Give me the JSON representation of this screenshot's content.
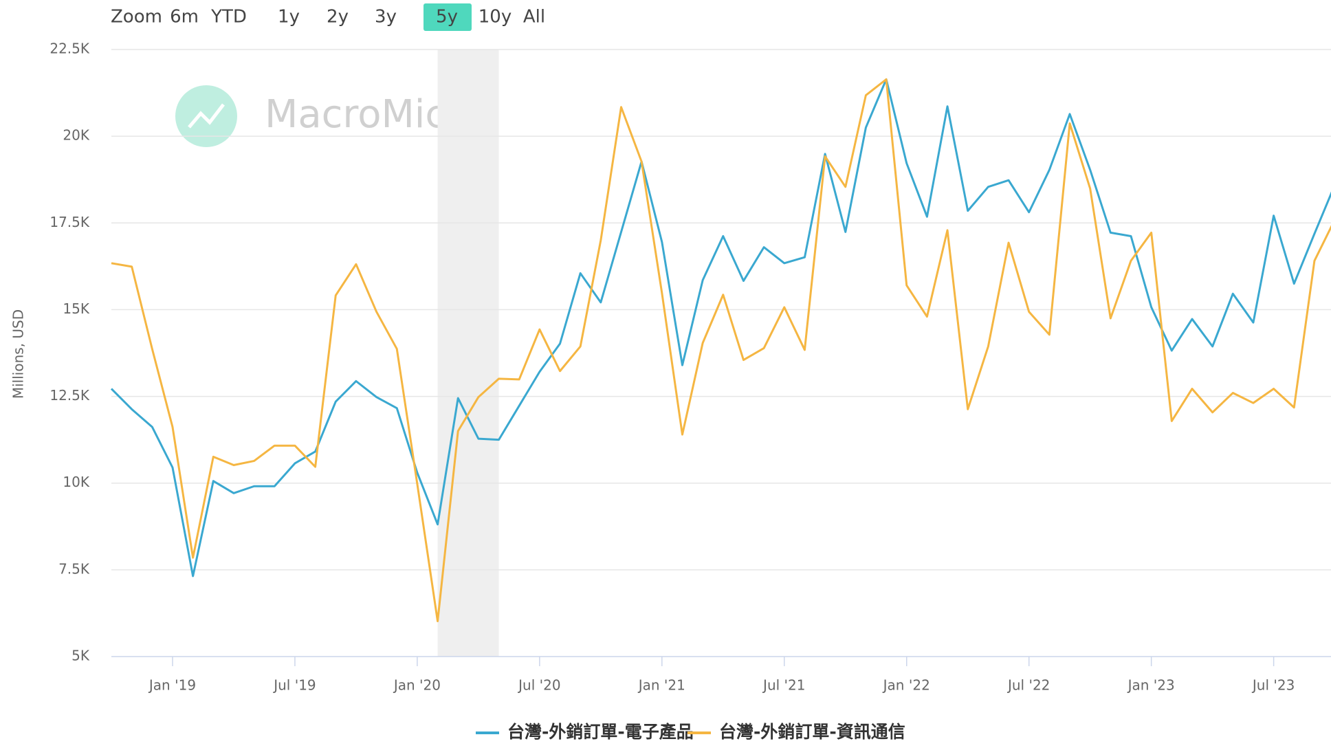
{
  "chart_data": {
    "type": "line",
    "zoom_buttons": [
      "Zoom",
      "6m",
      "YTD",
      "1y",
      "2y",
      "3y",
      "5y",
      "10y",
      "All"
    ],
    "zoom_selected": "5y",
    "watermark": "MacroMicro",
    "y_label": "Millions, USD",
    "x": [
      "2018-10",
      "2018-11",
      "2018-12",
      "2019-01",
      "2019-02",
      "2019-03",
      "2019-04",
      "2019-05",
      "2019-06",
      "2019-07",
      "2019-08",
      "2019-09",
      "2019-10",
      "2019-11",
      "2019-12",
      "2020-01",
      "2020-02",
      "2020-03",
      "2020-04",
      "2020-05",
      "2020-06",
      "2020-07",
      "2020-08",
      "2020-09",
      "2020-10",
      "2020-11",
      "2020-12",
      "2021-01",
      "2021-02",
      "2021-03",
      "2021-04",
      "2021-05",
      "2021-06",
      "2021-07",
      "2021-08",
      "2021-09",
      "2021-10",
      "2021-11",
      "2021-12",
      "2022-01",
      "2022-02",
      "2022-03",
      "2022-04",
      "2022-05",
      "2022-06",
      "2022-07",
      "2022-08",
      "2022-09",
      "2022-10",
      "2022-11",
      "2022-12",
      "2023-01",
      "2023-02",
      "2023-03",
      "2023-04",
      "2023-05",
      "2023-06",
      "2023-07",
      "2023-08",
      "2023-09",
      "2023-10"
    ],
    "series": [
      {
        "name": "台灣-外銷訂單-電子產品",
        "color": "#3aa8d0",
        "values": [
          12720,
          12130,
          11620,
          10450,
          7320,
          10060,
          9710,
          9910,
          9910,
          10570,
          10910,
          12350,
          12940,
          12480,
          12160,
          10300,
          8810,
          12450,
          11280,
          11250,
          12230,
          13210,
          14020,
          16050,
          15210,
          17240,
          19270,
          16950,
          13400,
          15850,
          17120,
          15830,
          16800,
          16340,
          16510,
          19490,
          17240,
          20250,
          21640,
          19220,
          17680,
          20860,
          17850,
          18540,
          18730,
          17810,
          19030,
          20640,
          19030,
          17220,
          17120,
          15070,
          13820,
          14730,
          13940,
          15460,
          14630,
          17710,
          15750,
          17190,
          18600
        ]
      },
      {
        "name": "台灣-外銷訂單-資訊通信",
        "color": "#f5b642",
        "values": [
          16340,
          16240,
          13870,
          11620,
          7850,
          10760,
          10520,
          10640,
          11080,
          11080,
          10470,
          15410,
          16310,
          14940,
          13870,
          9980,
          6020,
          11500,
          12480,
          13010,
          12990,
          14430,
          13230,
          13940,
          17000,
          20840,
          19270,
          15480,
          11400,
          14040,
          15430,
          13550,
          13890,
          15070,
          13840,
          19420,
          18540,
          21180,
          21640,
          15700,
          14800,
          17290,
          12130,
          13940,
          16930,
          14940,
          14280,
          20370,
          18490,
          14750,
          16410,
          17220,
          11790,
          12720,
          12040,
          12600,
          12310,
          12720,
          12180,
          16410,
          17600
        ]
      }
    ],
    "shaded_range": [
      "2020-02",
      "2020-05"
    ],
    "ylim": [
      5000,
      22500
    ],
    "yticks": [
      {
        "value": 5000,
        "label": "5K"
      },
      {
        "value": 7500,
        "label": "7.5K"
      },
      {
        "value": 10000,
        "label": "10K"
      },
      {
        "value": 12500,
        "label": "12.5K"
      },
      {
        "value": 15000,
        "label": "15K"
      },
      {
        "value": 17500,
        "label": "17.5K"
      },
      {
        "value": 20000,
        "label": "20K"
      },
      {
        "value": 22500,
        "label": "22.5K"
      }
    ],
    "xticks": [
      {
        "value": "2019-01",
        "label": "Jan '19"
      },
      {
        "value": "2019-07",
        "label": "Jul '19"
      },
      {
        "value": "2020-01",
        "label": "Jan '20"
      },
      {
        "value": "2020-07",
        "label": "Jul '20"
      },
      {
        "value": "2021-01",
        "label": "Jan '21"
      },
      {
        "value": "2021-07",
        "label": "Jul '21"
      },
      {
        "value": "2022-01",
        "label": "Jan '22"
      },
      {
        "value": "2022-07",
        "label": "Jul '22"
      },
      {
        "value": "2023-01",
        "label": "Jan '23"
      },
      {
        "value": "2023-07",
        "label": "Jul '23"
      }
    ],
    "grid": true
  }
}
